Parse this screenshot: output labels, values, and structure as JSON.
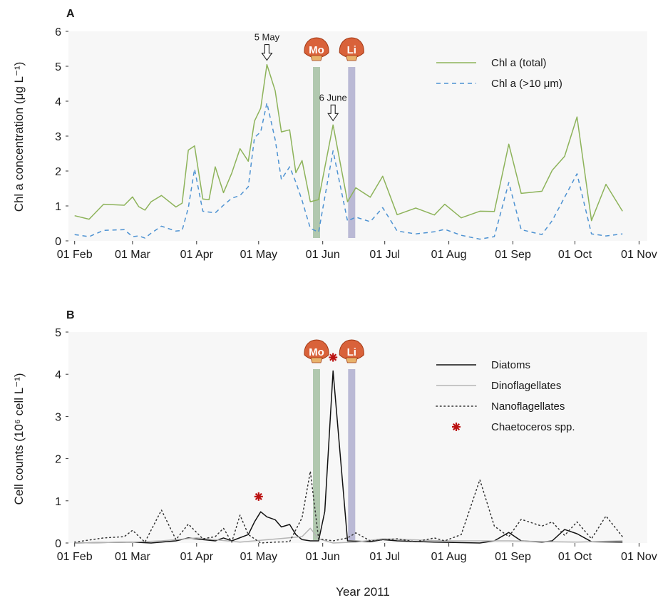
{
  "figure": {
    "xlabel": "Year 2011"
  },
  "chart_data": [
    {
      "type": "line",
      "panel_label": "A",
      "ylabel": "Chl a concentration (μg L⁻¹)",
      "ylim": [
        0,
        6
      ],
      "yticks": [
        0,
        1,
        2,
        3,
        4,
        5,
        6
      ],
      "xlim": [
        "2011-01-29",
        "2011-11-05"
      ],
      "xticks": [
        "2011-02-01",
        "2011-03-01",
        "2011-04-01",
        "2011-05-01",
        "2011-06-01",
        "2011-07-01",
        "2011-08-01",
        "2011-09-01",
        "2011-10-01",
        "2011-11-01"
      ],
      "xtick_labels": [
        "01 Feb",
        "01 Mar",
        "01 Apr",
        "01 May",
        "01 Jun",
        "01 Jul",
        "01 Aug",
        "01 Sep",
        "01 Oct",
        "01 Nov"
      ],
      "grid": false,
      "legend_position": "top-right",
      "series": [
        {
          "name": "Chl a (total)",
          "style": "solid",
          "color": "#8db35a",
          "points": [
            [
              "2011-02-01",
              0.72
            ],
            [
              "2011-02-08",
              0.62
            ],
            [
              "2011-02-15",
              1.05
            ],
            [
              "2011-02-25",
              1.02
            ],
            [
              "2011-03-01",
              1.26
            ],
            [
              "2011-03-04",
              0.98
            ],
            [
              "2011-03-07",
              0.88
            ],
            [
              "2011-03-10",
              1.12
            ],
            [
              "2011-03-15",
              1.3
            ],
            [
              "2011-03-22",
              0.97
            ],
            [
              "2011-03-25",
              1.08
            ],
            [
              "2011-03-28",
              2.6
            ],
            [
              "2011-03-31",
              2.72
            ],
            [
              "2011-04-04",
              1.2
            ],
            [
              "2011-04-07",
              1.18
            ],
            [
              "2011-04-10",
              2.12
            ],
            [
              "2011-04-14",
              1.38
            ],
            [
              "2011-04-18",
              1.94
            ],
            [
              "2011-04-22",
              2.64
            ],
            [
              "2011-04-26",
              2.28
            ],
            [
              "2011-04-29",
              3.43
            ],
            [
              "2011-05-02",
              3.8
            ],
            [
              "2011-05-05",
              5.05
            ],
            [
              "2011-05-09",
              4.3
            ],
            [
              "2011-05-12",
              3.12
            ],
            [
              "2011-05-16",
              3.18
            ],
            [
              "2011-05-19",
              1.95
            ],
            [
              "2011-05-22",
              2.3
            ],
            [
              "2011-05-26",
              1.12
            ],
            [
              "2011-05-30",
              1.18
            ],
            [
              "2011-06-06",
              3.32
            ],
            [
              "2011-06-13",
              1.12
            ],
            [
              "2011-06-17",
              1.52
            ],
            [
              "2011-06-24",
              1.25
            ],
            [
              "2011-06-30",
              1.85
            ],
            [
              "2011-07-07",
              0.75
            ],
            [
              "2011-07-16",
              0.94
            ],
            [
              "2011-07-25",
              0.74
            ],
            [
              "2011-07-30",
              1.05
            ],
            [
              "2011-08-07",
              0.66
            ],
            [
              "2011-08-16",
              0.85
            ],
            [
              "2011-08-23",
              0.84
            ],
            [
              "2011-08-30",
              2.77
            ],
            [
              "2011-09-05",
              1.36
            ],
            [
              "2011-09-15",
              1.42
            ],
            [
              "2011-09-20",
              2.02
            ],
            [
              "2011-09-26",
              2.42
            ],
            [
              "2011-10-02",
              3.55
            ],
            [
              "2011-10-09",
              0.58
            ],
            [
              "2011-10-16",
              1.62
            ],
            [
              "2011-10-24",
              0.85
            ]
          ]
        },
        {
          "name": "Chl a (>10 μm)",
          "style": "dashed",
          "color": "#4d92d2",
          "points": [
            [
              "2011-02-01",
              0.18
            ],
            [
              "2011-02-08",
              0.12
            ],
            [
              "2011-02-15",
              0.3
            ],
            [
              "2011-02-25",
              0.32
            ],
            [
              "2011-03-01",
              0.12
            ],
            [
              "2011-03-04",
              0.14
            ],
            [
              "2011-03-07",
              0.08
            ],
            [
              "2011-03-10",
              0.22
            ],
            [
              "2011-03-15",
              0.42
            ],
            [
              "2011-03-22",
              0.28
            ],
            [
              "2011-03-25",
              0.3
            ],
            [
              "2011-03-28",
              0.95
            ],
            [
              "2011-03-31",
              2.06
            ],
            [
              "2011-04-04",
              0.85
            ],
            [
              "2011-04-10",
              0.8
            ],
            [
              "2011-04-14",
              1.02
            ],
            [
              "2011-04-18",
              1.22
            ],
            [
              "2011-04-22",
              1.3
            ],
            [
              "2011-04-26",
              1.55
            ],
            [
              "2011-04-29",
              2.96
            ],
            [
              "2011-05-02",
              3.12
            ],
            [
              "2011-05-05",
              3.95
            ],
            [
              "2011-05-09",
              2.9
            ],
            [
              "2011-05-12",
              1.76
            ],
            [
              "2011-05-16",
              2.12
            ],
            [
              "2011-05-19",
              1.68
            ],
            [
              "2011-05-22",
              1.16
            ],
            [
              "2011-05-26",
              0.36
            ],
            [
              "2011-05-30",
              0.25
            ],
            [
              "2011-06-06",
              2.58
            ],
            [
              "2011-06-13",
              0.57
            ],
            [
              "2011-06-17",
              0.68
            ],
            [
              "2011-06-24",
              0.55
            ],
            [
              "2011-06-30",
              0.95
            ],
            [
              "2011-07-07",
              0.28
            ],
            [
              "2011-07-16",
              0.2
            ],
            [
              "2011-07-25",
              0.26
            ],
            [
              "2011-07-30",
              0.33
            ],
            [
              "2011-08-07",
              0.16
            ],
            [
              "2011-08-16",
              0.05
            ],
            [
              "2011-08-23",
              0.12
            ],
            [
              "2011-08-30",
              1.67
            ],
            [
              "2011-09-05",
              0.32
            ],
            [
              "2011-09-15",
              0.18
            ],
            [
              "2011-09-20",
              0.58
            ],
            [
              "2011-09-26",
              1.25
            ],
            [
              "2011-10-02",
              1.92
            ],
            [
              "2011-10-09",
              0.2
            ],
            [
              "2011-10-16",
              0.14
            ],
            [
              "2011-10-24",
              0.2
            ]
          ]
        }
      ],
      "vertical_bands": [
        {
          "date": "2011-05-29",
          "color": "#a9c2a6",
          "badge": "Mo"
        },
        {
          "date": "2011-06-15",
          "color": "#b2b1d0",
          "badge": "Li"
        }
      ],
      "annotations": [
        {
          "label": "5 May",
          "date": "2011-05-05"
        },
        {
          "label": "6 June",
          "date": "2011-06-06"
        }
      ]
    },
    {
      "type": "line",
      "panel_label": "B",
      "ylabel": "Cell counts (10⁶ cell L⁻¹)",
      "ylim": [
        0,
        5
      ],
      "yticks": [
        0,
        1,
        2,
        3,
        4,
        5
      ],
      "xlim": [
        "2011-01-29",
        "2011-11-05"
      ],
      "xticks": [
        "2011-02-01",
        "2011-03-01",
        "2011-04-01",
        "2011-05-01",
        "2011-06-01",
        "2011-07-01",
        "2011-08-01",
        "2011-09-01",
        "2011-10-01",
        "2011-11-01"
      ],
      "xtick_labels": [
        "01 Feb",
        "01 Mar",
        "01 Apr",
        "01 May",
        "01 Jun",
        "01 Jul",
        "01 Aug",
        "01 Sep",
        "01 Oct",
        "01 Nov"
      ],
      "grid": false,
      "legend_position": "top-right",
      "series": [
        {
          "name": "Diatoms",
          "style": "solid",
          "color": "#111111",
          "points": [
            [
              "2011-02-01",
              0.0
            ],
            [
              "2011-03-01",
              0.02
            ],
            [
              "2011-03-10",
              0.0
            ],
            [
              "2011-03-22",
              0.05
            ],
            [
              "2011-03-28",
              0.12
            ],
            [
              "2011-04-04",
              0.08
            ],
            [
              "2011-04-10",
              0.05
            ],
            [
              "2011-04-14",
              0.12
            ],
            [
              "2011-04-18",
              0.05
            ],
            [
              "2011-04-26",
              0.2
            ],
            [
              "2011-04-29",
              0.5
            ],
            [
              "2011-05-02",
              0.74
            ],
            [
              "2011-05-05",
              0.62
            ],
            [
              "2011-05-09",
              0.55
            ],
            [
              "2011-05-12",
              0.38
            ],
            [
              "2011-05-16",
              0.44
            ],
            [
              "2011-05-19",
              0.2
            ],
            [
              "2011-05-22",
              0.08
            ],
            [
              "2011-05-26",
              0.05
            ],
            [
              "2011-05-30",
              0.05
            ],
            [
              "2011-06-02",
              0.75
            ],
            [
              "2011-06-06",
              4.08
            ],
            [
              "2011-06-13",
              0.05
            ],
            [
              "2011-06-24",
              0.03
            ],
            [
              "2011-06-30",
              0.08
            ],
            [
              "2011-07-07",
              0.05
            ],
            [
              "2011-07-25",
              0.02
            ],
            [
              "2011-08-16",
              0.0
            ],
            [
              "2011-08-23",
              0.05
            ],
            [
              "2011-08-30",
              0.25
            ],
            [
              "2011-09-05",
              0.05
            ],
            [
              "2011-09-15",
              0.02
            ],
            [
              "2011-09-20",
              0.05
            ],
            [
              "2011-09-26",
              0.32
            ],
            [
              "2011-10-02",
              0.22
            ],
            [
              "2011-10-09",
              0.03
            ],
            [
              "2011-10-24",
              0.02
            ]
          ]
        },
        {
          "name": "Dinoflagellates",
          "style": "solid",
          "color": "#b5b5b5",
          "points": [
            [
              "2011-02-01",
              0.0
            ],
            [
              "2011-03-01",
              0.02
            ],
            [
              "2011-03-15",
              0.05
            ],
            [
              "2011-04-01",
              0.12
            ],
            [
              "2011-04-22",
              0.02
            ],
            [
              "2011-05-22",
              0.15
            ],
            [
              "2011-05-26",
              0.35
            ],
            [
              "2011-05-30",
              0.1
            ],
            [
              "2011-06-06",
              0.0
            ],
            [
              "2011-06-17",
              0.02
            ],
            [
              "2011-06-30",
              0.1
            ],
            [
              "2011-07-30",
              0.05
            ],
            [
              "2011-08-30",
              0.05
            ],
            [
              "2011-09-20",
              0.03
            ],
            [
              "2011-10-02",
              0.02
            ],
            [
              "2011-10-24",
              0.05
            ]
          ]
        },
        {
          "name": "Nanoflagellates",
          "style": "dotted",
          "color": "#333333",
          "points": [
            [
              "2011-02-01",
              0.02
            ],
            [
              "2011-02-15",
              0.12
            ],
            [
              "2011-02-25",
              0.15
            ],
            [
              "2011-03-01",
              0.3
            ],
            [
              "2011-03-07",
              0.02
            ],
            [
              "2011-03-15",
              0.78
            ],
            [
              "2011-03-22",
              0.08
            ],
            [
              "2011-03-28",
              0.45
            ],
            [
              "2011-04-04",
              0.1
            ],
            [
              "2011-04-10",
              0.15
            ],
            [
              "2011-04-14",
              0.35
            ],
            [
              "2011-04-18",
              0.02
            ],
            [
              "2011-04-22",
              0.66
            ],
            [
              "2011-04-26",
              0.2
            ],
            [
              "2011-05-02",
              0.0
            ],
            [
              "2011-05-09",
              0.02
            ],
            [
              "2011-05-16",
              0.03
            ],
            [
              "2011-05-22",
              0.6
            ],
            [
              "2011-05-26",
              1.7
            ],
            [
              "2011-05-30",
              0.1
            ],
            [
              "2011-06-06",
              0.05
            ],
            [
              "2011-06-13",
              0.12
            ],
            [
              "2011-06-17",
              0.24
            ],
            [
              "2011-06-24",
              0.05
            ],
            [
              "2011-07-07",
              0.1
            ],
            [
              "2011-07-16",
              0.03
            ],
            [
              "2011-07-25",
              0.12
            ],
            [
              "2011-07-30",
              0.05
            ],
            [
              "2011-08-07",
              0.2
            ],
            [
              "2011-08-16",
              1.5
            ],
            [
              "2011-08-23",
              0.4
            ],
            [
              "2011-08-30",
              0.15
            ],
            [
              "2011-09-05",
              0.56
            ],
            [
              "2011-09-15",
              0.4
            ],
            [
              "2011-09-20",
              0.5
            ],
            [
              "2011-09-26",
              0.18
            ],
            [
              "2011-10-02",
              0.5
            ],
            [
              "2011-10-09",
              0.1
            ],
            [
              "2011-10-16",
              0.64
            ],
            [
              "2011-10-24",
              0.15
            ]
          ]
        }
      ],
      "markers": {
        "name": "Chaetoceros spp.",
        "color": "#bb1111",
        "symbol": "asterisk",
        "points": [
          [
            "2011-05-01",
            1.1
          ],
          [
            "2011-06-06",
            4.4
          ]
        ]
      },
      "vertical_bands": [
        {
          "date": "2011-05-29",
          "color": "#a9c2a6",
          "badge": "Mo"
        },
        {
          "date": "2011-06-15",
          "color": "#b2b1d0",
          "badge": "Li"
        }
      ]
    }
  ]
}
